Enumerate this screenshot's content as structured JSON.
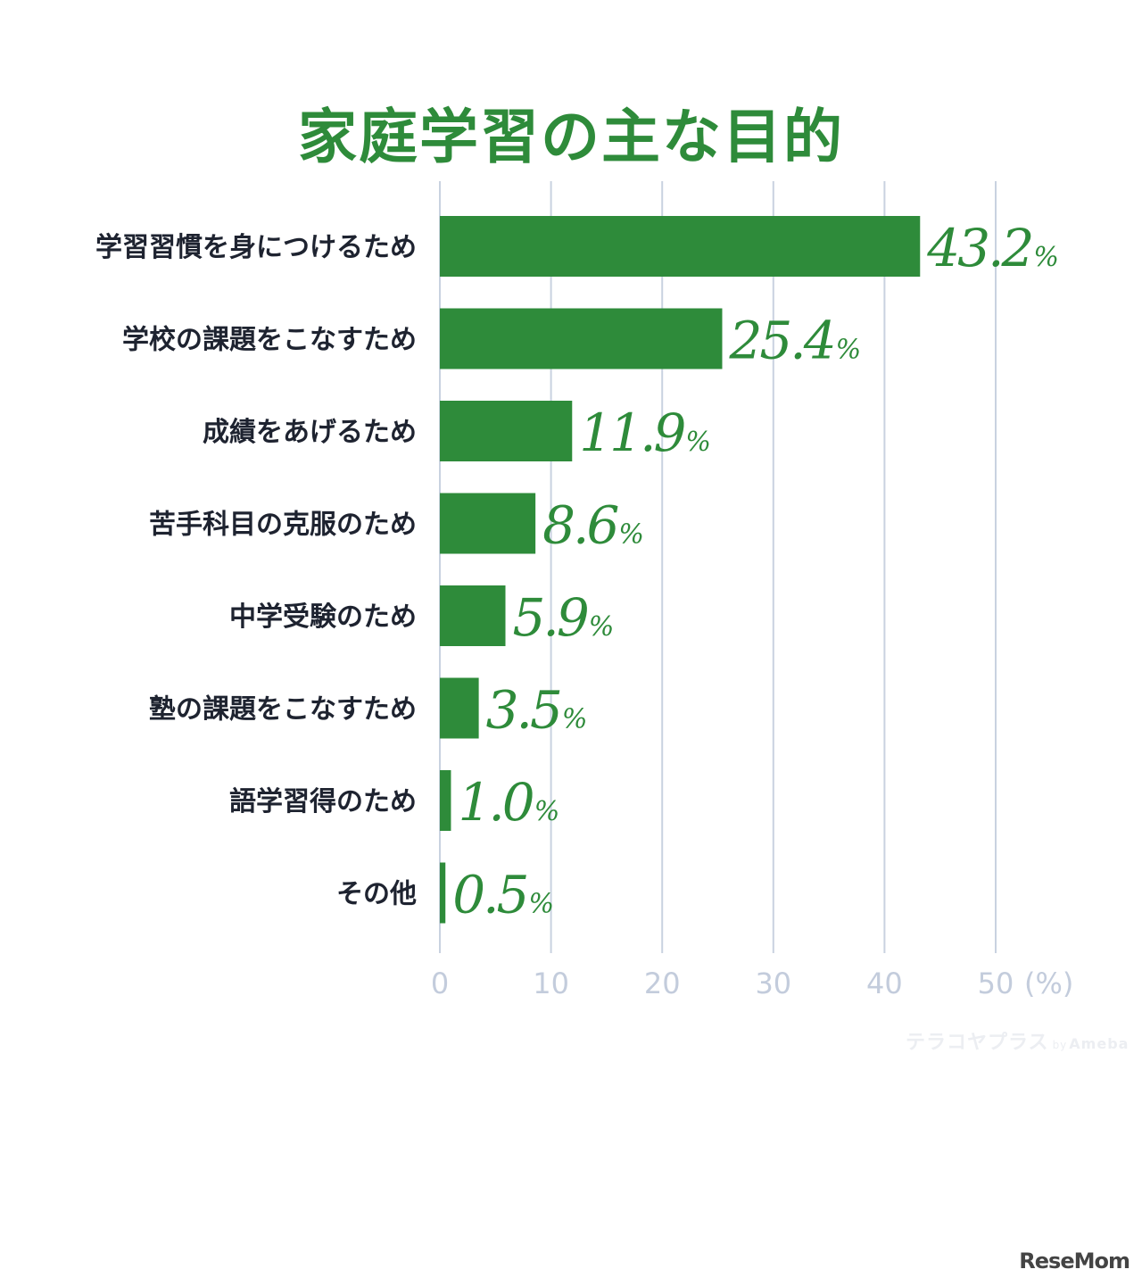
{
  "chart_data": {
    "type": "bar",
    "orientation": "horizontal",
    "title": "家庭学習の主な目的",
    "categories": [
      "学習習慣を身につけるため",
      "学校の課題をこなすため",
      "成績をあげるため",
      "苦手科目の克服のため",
      "中学受験のため",
      "塾の課題をこなすため",
      "語学習得のため",
      "その他"
    ],
    "values": [
      43.2,
      25.4,
      11.9,
      8.6,
      5.9,
      3.5,
      1.0,
      0.5
    ],
    "value_labels": [
      "43.2",
      "25.4",
      "11.9",
      "8.6",
      "5.9",
      "3.5",
      "1.0",
      "0.5"
    ],
    "value_unit": "%",
    "x_ticks": [
      "0",
      "10",
      "20",
      "30",
      "40",
      "50"
    ],
    "x_unit_label": "(%)",
    "xlim": [
      0,
      50
    ],
    "grid": true,
    "colors": {
      "bar": "#2e8b3a",
      "title": "#2e8b3a",
      "value_label": "#2e8b3a",
      "grid": "#c9d2e0",
      "tick_label": "#c3ccdc",
      "category_label": "#1e2330"
    }
  },
  "branding": {
    "watermark_main": "テラコヤプラス",
    "watermark_by": "by",
    "watermark_sub": "Ameba",
    "publisher": "ReseMom"
  }
}
